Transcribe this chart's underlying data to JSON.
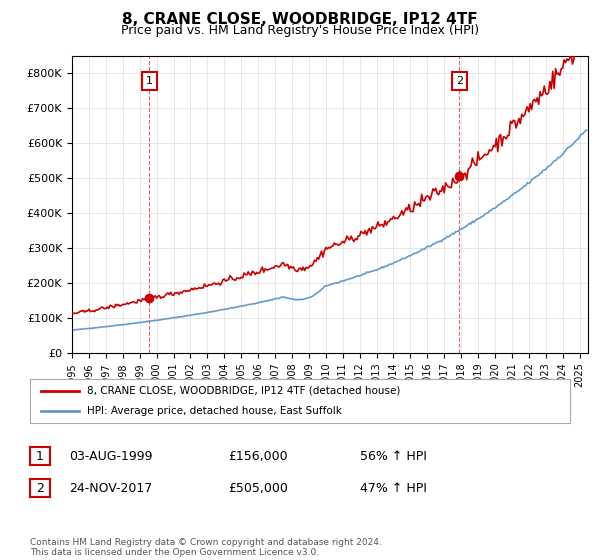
{
  "title": "8, CRANE CLOSE, WOODBRIDGE, IP12 4TF",
  "subtitle": "Price paid vs. HM Land Registry's House Price Index (HPI)",
  "property_label": "8, CRANE CLOSE, WOODBRIDGE, IP12 4TF (detached house)",
  "hpi_label": "HPI: Average price, detached house, East Suffolk",
  "property_color": "#cc0000",
  "hpi_color": "#6699cc",
  "annotation1_label": "1",
  "annotation1_date": "03-AUG-1999",
  "annotation1_price": "£156,000",
  "annotation1_hpi": "56% ↑ HPI",
  "annotation2_label": "2",
  "annotation2_date": "24-NOV-2017",
  "annotation2_price": "£505,000",
  "annotation2_hpi": "47% ↑ HPI",
  "footnote": "Contains HM Land Registry data © Crown copyright and database right 2024.\nThis data is licensed under the Open Government Licence v3.0.",
  "ylim": [
    0,
    850000
  ],
  "yticks": [
    0,
    100000,
    200000,
    300000,
    400000,
    500000,
    600000,
    700000,
    800000
  ],
  "xlim_start": 1995.0,
  "xlim_end": 2025.5,
  "vline1_x": 1999.58,
  "vline2_x": 2017.9,
  "dot1_x": 1999.58,
  "dot1_y": 156000,
  "dot2_x": 2017.9,
  "dot2_y": 505000,
  "background_color": "#ffffff",
  "grid_color": "#dddddd"
}
